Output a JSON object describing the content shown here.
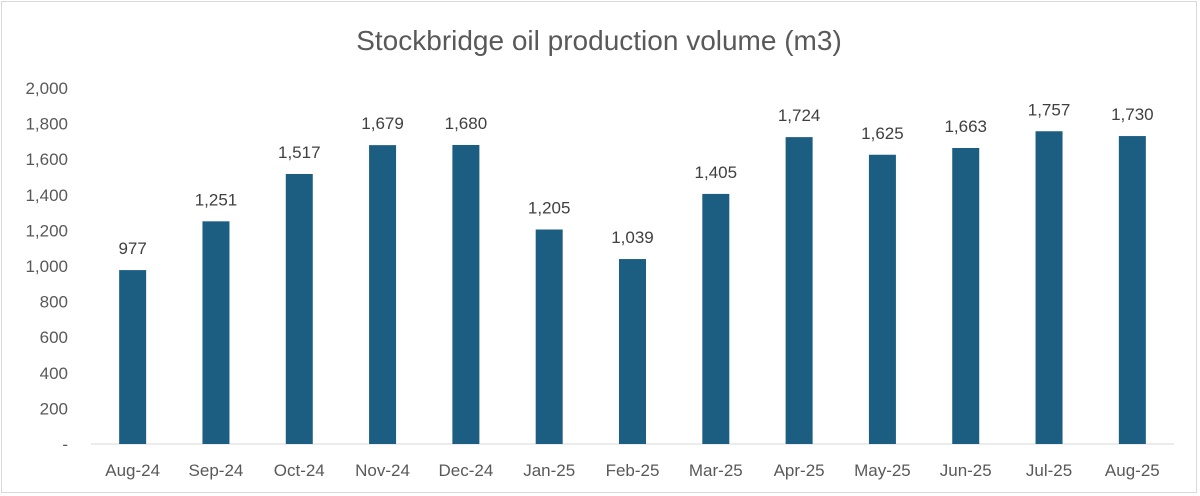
{
  "chart_data": {
    "type": "bar",
    "title": "Stockbridge oil production volume (m3)",
    "xlabel": "",
    "ylabel": "",
    "categories": [
      "Aug-24",
      "Sep-24",
      "Oct-24",
      "Nov-24",
      "Dec-24",
      "Jan-25",
      "Feb-25",
      "Mar-25",
      "Apr-25",
      "May-25",
      "Jun-25",
      "Jul-25",
      "Aug-25"
    ],
    "values": [
      977,
      1251,
      1517,
      1679,
      1680,
      1205,
      1039,
      1405,
      1724,
      1625,
      1663,
      1757,
      1730
    ],
    "data_labels": [
      "977",
      "1,251",
      "1,517",
      "1,679",
      "1,680",
      "1,205",
      "1,039",
      "1,405",
      "1,724",
      "1,625",
      "1,663",
      "1,757",
      "1,730"
    ],
    "ylim": [
      0,
      2000
    ],
    "yticks": [
      0,
      200,
      400,
      600,
      800,
      1000,
      1200,
      1400,
      1600,
      1800,
      2000
    ],
    "ytick_labels": [
      "-",
      "200",
      "400",
      "600",
      "800",
      "1,000",
      "1,200",
      "1,400",
      "1,600",
      "1,800",
      "2,000"
    ],
    "grid": false,
    "legend": "none",
    "bar_color": "#1b5e82"
  }
}
